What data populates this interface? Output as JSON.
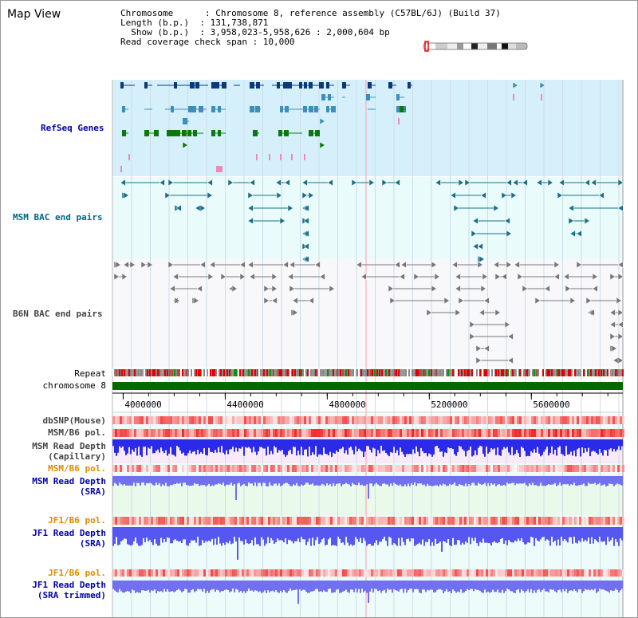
{
  "view": {
    "title": "Map View",
    "info_lines": [
      "Chromosome      : Chromosome 8, reference assembly (C57BL/6J) (Build 37)",
      "Length (b.p.)  : 131,738,871",
      "  Show (b.p.)  : 3,958,023-5,958,626 : 2,000,604 bp",
      "Read coverage check span : 10,000"
    ]
  },
  "ruler": {
    "start": 3958023,
    "end": 5958626,
    "ticks": [
      "4000000",
      "4400000",
      "4800000",
      "5200000",
      "5600000"
    ],
    "tick_values": [
      4000000,
      4400000,
      4800000,
      5200000,
      5600000
    ]
  },
  "tracks": {
    "refseq": "RefSeq Genes",
    "msm_bac": "MSM BAC end pairs",
    "b6n_bac": "B6N BAC end pairs",
    "repeat": "Repeat",
    "chromosome": "chromosome 8",
    "dbsnp": "dbSNP(Mouse)",
    "msm_b6_pol": "MSM/B6 pol.",
    "msm_depth_cap_1": "MSM Read Depth",
    "msm_depth_cap_2": "(Capillary)",
    "msm_b6_pol2": "MSM/B6 pol.",
    "msm_depth_sra_1": "MSM Read Depth",
    "msm_depth_sra_2": "(SRA)",
    "jf1_b6_pol": "JF1/B6 pol.",
    "jf1_depth_sra_1": "JF1 Read Depth",
    "jf1_depth_sra_2": "(SRA)",
    "jf1_b6_pol2": "JF1/B6 pol.",
    "jf1_depth_trim_1": "JF1 Read Depth",
    "jf1_depth_trim_2": "(SRA trimmed)"
  },
  "colors": {
    "refseq_bg": "#d6f0fb",
    "bac_bg": "#e9fbfb",
    "gene_dark": "#0a3a78",
    "gene_mid": "#3c8fb8",
    "gene_green": "#0a7a0a",
    "bac_teal": "#1a6f8a",
    "bac_gray": "#777777",
    "chrom_green": "#006a00",
    "depth_blue": "#3030e0",
    "depth_light": "#7070f0"
  }
}
